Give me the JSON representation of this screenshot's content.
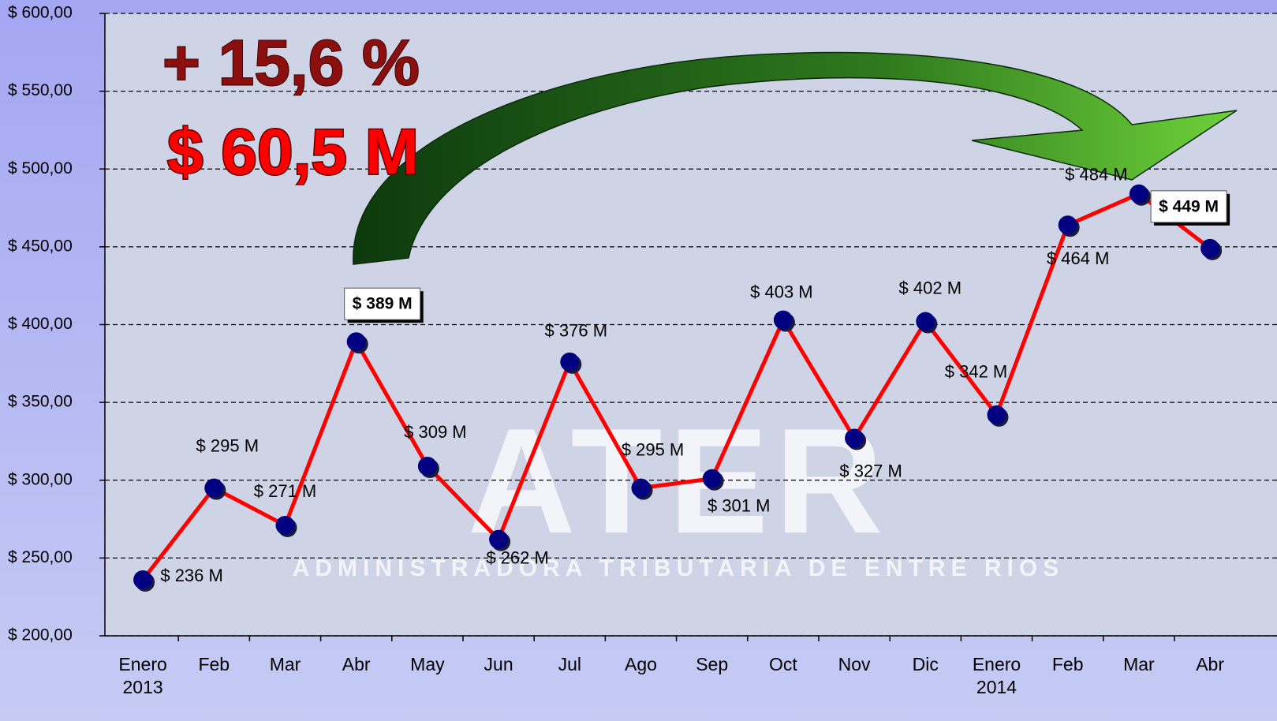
{
  "chart_data": {
    "type": "line",
    "annotations": [
      "+ 15,6 %",
      "$ 60,5 M"
    ],
    "watermark": {
      "title": "ATER",
      "subtitle": "ADMINISTRADORA TRIBUTARIA DE ENTRE RIOS"
    },
    "categories": [
      "Enero\n2013",
      "Feb",
      "Mar",
      "Abr",
      "May",
      "Jun",
      "Jul",
      "Ago",
      "Sep",
      "Oct",
      "Nov",
      "Dic",
      "Enero\n2014",
      "Feb",
      "Mar",
      "Abr"
    ],
    "values": [
      236,
      295,
      271,
      389,
      309,
      262,
      376,
      295,
      301,
      403,
      327,
      402,
      342,
      464,
      484,
      449
    ],
    "value_labels": [
      "$ 236 M",
      "$ 295 M",
      "$ 271 M",
      "$ 389 M",
      "$ 309 M",
      "$ 262 M",
      "$ 376 M",
      "$ 295 M",
      "$ 301 M",
      "$ 403 M",
      "$ 327 M",
      "$ 402 M",
      "$ 342 M",
      "$ 464 M",
      "$ 484 M",
      "$ 449 M"
    ],
    "boxed_labels": [
      3,
      15
    ],
    "color": "#ff0000",
    "marker_color": "#000080",
    "ylim": [
      200,
      600
    ],
    "yticks": [
      {
        "value": 200,
        "label": "$ 200,00"
      },
      {
        "value": 250,
        "label": "$ 250,00"
      },
      {
        "value": 300,
        "label": "$ 300,00"
      },
      {
        "value": 350,
        "label": "$ 350,00"
      },
      {
        "value": 400,
        "label": "$ 400,00"
      },
      {
        "value": 450,
        "label": "$ 450,00"
      },
      {
        "value": 500,
        "label": "$ 500,00"
      },
      {
        "value": 550,
        "label": "$ 550,00"
      },
      {
        "value": 600,
        "label": "$ 600,00"
      }
    ],
    "grid": true
  }
}
